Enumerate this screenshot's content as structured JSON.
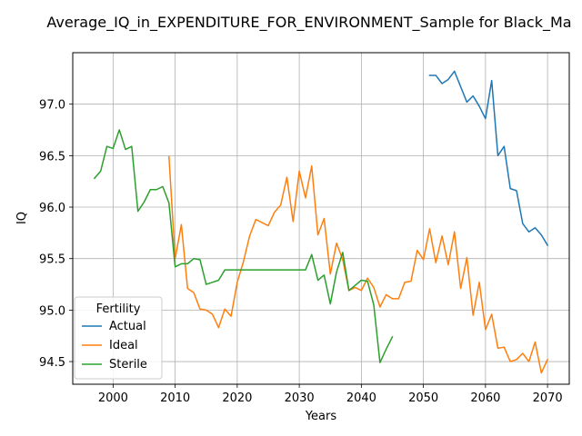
{
  "chart_data": {
    "type": "line",
    "title": "Average_IQ_in_EXPENDITURE_FOR_ENVIRONMENT_Sample for Black_Ma",
    "xlabel": "Years",
    "ylabel": "IQ",
    "xlim": [
      1993.5,
      2073.5
    ],
    "ylim": [
      94.28,
      97.5
    ],
    "xticks": [
      2000,
      2010,
      2020,
      2030,
      2040,
      2050,
      2060,
      2070
    ],
    "yticks": [
      94.5,
      95.0,
      95.5,
      96.0,
      96.5,
      97.0
    ],
    "grid": true,
    "legend": {
      "title": "Fertility",
      "placement": "lower-left"
    },
    "series": [
      {
        "name": "Actual",
        "color": "#1f77b4",
        "points": [
          [
            2051,
            97.28
          ],
          [
            2052,
            97.28
          ],
          [
            2053,
            97.2
          ],
          [
            2054,
            97.24
          ],
          [
            2055,
            97.32
          ],
          [
            2056,
            97.17
          ],
          [
            2057,
            97.02
          ],
          [
            2058,
            97.08
          ],
          [
            2059,
            96.98
          ],
          [
            2060,
            96.86
          ],
          [
            2061,
            97.23
          ],
          [
            2062,
            96.5
          ],
          [
            2063,
            96.59
          ],
          [
            2064,
            96.18
          ],
          [
            2065,
            96.16
          ],
          [
            2066,
            95.84
          ],
          [
            2067,
            95.76
          ],
          [
            2068,
            95.8
          ],
          [
            2069,
            95.73
          ],
          [
            2070,
            95.63
          ]
        ]
      },
      {
        "name": "Ideal",
        "color": "#ff7f0e",
        "points": [
          [
            2009,
            96.49
          ],
          [
            2010,
            95.5
          ],
          [
            2011,
            95.83
          ],
          [
            2012,
            95.21
          ],
          [
            2013,
            95.17
          ],
          [
            2014,
            95.01
          ],
          [
            2015,
            95.0
          ],
          [
            2016,
            94.96
          ],
          [
            2017,
            94.83
          ],
          [
            2018,
            95.01
          ],
          [
            2019,
            94.94
          ],
          [
            2020,
            95.27
          ],
          [
            2021,
            95.47
          ],
          [
            2022,
            95.72
          ],
          [
            2023,
            95.88
          ],
          [
            2024,
            95.85
          ],
          [
            2025,
            95.82
          ],
          [
            2026,
            95.95
          ],
          [
            2027,
            96.02
          ],
          [
            2028,
            96.29
          ],
          [
            2029,
            95.86
          ],
          [
            2030,
            96.35
          ],
          [
            2031,
            96.09
          ],
          [
            2032,
            96.4
          ],
          [
            2033,
            95.73
          ],
          [
            2034,
            95.89
          ],
          [
            2035,
            95.35
          ],
          [
            2036,
            95.65
          ],
          [
            2037,
            95.49
          ],
          [
            2038,
            95.19
          ],
          [
            2039,
            95.22
          ],
          [
            2040,
            95.19
          ],
          [
            2041,
            95.31
          ],
          [
            2042,
            95.22
          ],
          [
            2043,
            95.03
          ],
          [
            2044,
            95.15
          ],
          [
            2045,
            95.11
          ],
          [
            2046,
            95.11
          ],
          [
            2047,
            95.27
          ],
          [
            2048,
            95.28
          ],
          [
            2049,
            95.58
          ],
          [
            2050,
            95.49
          ],
          [
            2051,
            95.79
          ],
          [
            2052,
            95.46
          ],
          [
            2053,
            95.72
          ],
          [
            2054,
            95.44
          ],
          [
            2055,
            95.76
          ],
          [
            2056,
            95.21
          ],
          [
            2057,
            95.51
          ],
          [
            2058,
            94.95
          ],
          [
            2059,
            95.27
          ],
          [
            2060,
            94.81
          ],
          [
            2061,
            94.96
          ],
          [
            2062,
            94.63
          ],
          [
            2063,
            94.64
          ],
          [
            2064,
            94.5
          ],
          [
            2065,
            94.52
          ],
          [
            2066,
            94.58
          ],
          [
            2067,
            94.5
          ],
          [
            2068,
            94.69
          ],
          [
            2069,
            94.39
          ],
          [
            2070,
            94.52
          ]
        ]
      },
      {
        "name": "Sterile",
        "color": "#2ca02c",
        "points": [
          [
            1997,
            96.28
          ],
          [
            1998,
            96.35
          ],
          [
            1999,
            96.59
          ],
          [
            2000,
            96.57
          ],
          [
            2001,
            96.75
          ],
          [
            2002,
            96.56
          ],
          [
            2003,
            96.59
          ],
          [
            2004,
            95.96
          ],
          [
            2005,
            96.05
          ],
          [
            2006,
            96.17
          ],
          [
            2007,
            96.17
          ],
          [
            2008,
            96.2
          ],
          [
            2009,
            96.04
          ],
          [
            2010,
            95.42
          ],
          [
            2011,
            95.45
          ],
          [
            2012,
            95.45
          ],
          [
            2013,
            95.5
          ],
          [
            2014,
            95.49
          ],
          [
            2015,
            95.25
          ],
          [
            2016,
            95.27
          ],
          [
            2017,
            95.29
          ],
          [
            2018,
            95.39
          ],
          [
            2019,
            95.39
          ],
          [
            2020,
            95.39
          ],
          [
            2021,
            95.39
          ],
          [
            2022,
            95.39
          ],
          [
            2023,
            95.39
          ],
          [
            2024,
            95.39
          ],
          [
            2025,
            95.39
          ],
          [
            2026,
            95.39
          ],
          [
            2027,
            95.39
          ],
          [
            2028,
            95.39
          ],
          [
            2029,
            95.39
          ],
          [
            2030,
            95.39
          ],
          [
            2031,
            95.39
          ],
          [
            2032,
            95.54
          ],
          [
            2033,
            95.29
          ],
          [
            2034,
            95.34
          ],
          [
            2035,
            95.06
          ],
          [
            2036,
            95.37
          ],
          [
            2037,
            95.56
          ],
          [
            2038,
            95.19
          ],
          [
            2039,
            95.24
          ],
          [
            2040,
            95.29
          ],
          [
            2041,
            95.28
          ],
          [
            2042,
            95.05
          ],
          [
            2043,
            94.49
          ],
          [
            2044,
            94.62
          ],
          [
            2045,
            94.74
          ]
        ]
      }
    ]
  }
}
